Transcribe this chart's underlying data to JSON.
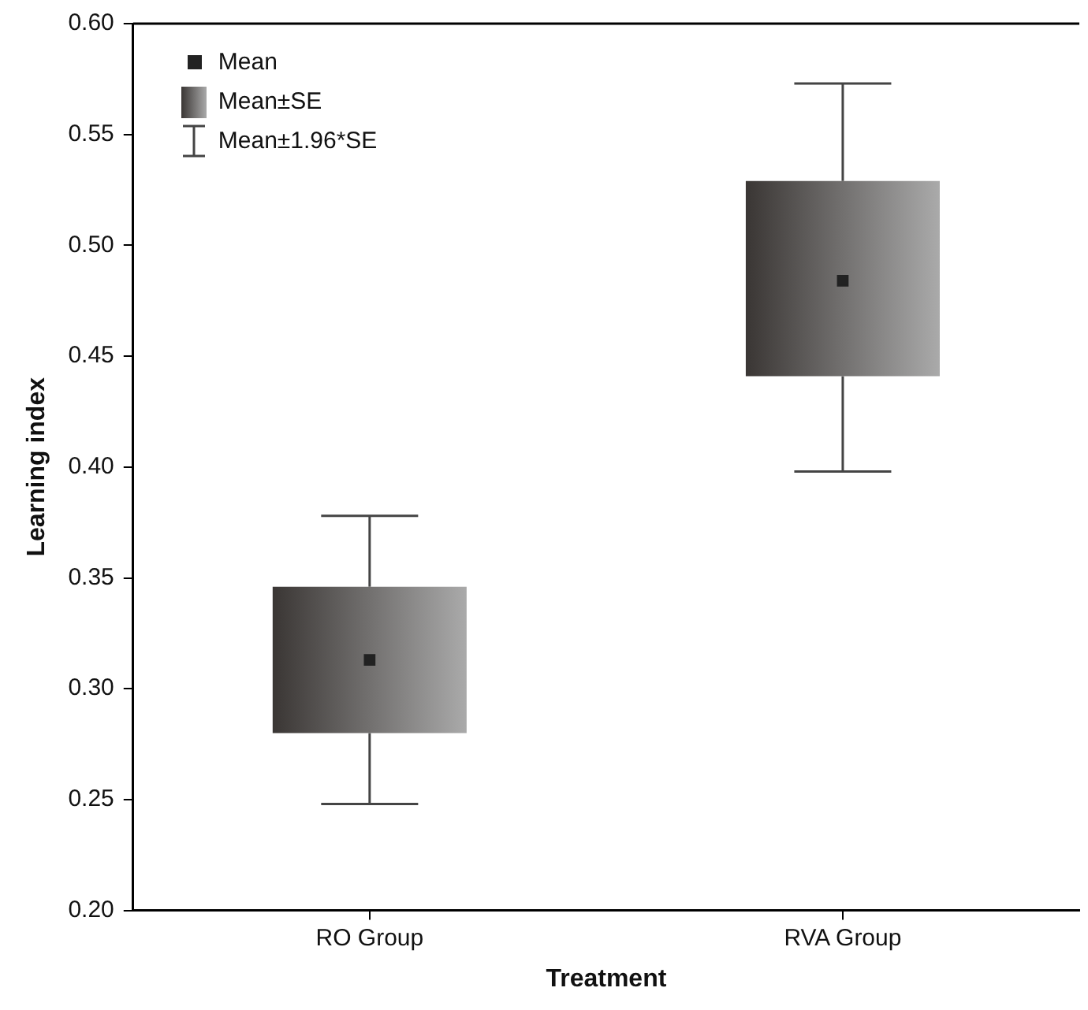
{
  "chart_data": {
    "type": "box",
    "xlabel": "Treatment",
    "ylabel": "Learning index",
    "categories": [
      "RO Group",
      "RVA Group"
    ],
    "color": "#3a3634",
    "boxes": [
      {
        "low": 0.248,
        "q1": 0.28,
        "mean": 0.313,
        "q3": 0.346,
        "high": 0.378
      },
      {
        "low": 0.398,
        "q1": 0.441,
        "mean": 0.484,
        "q3": 0.529,
        "high": 0.573
      }
    ],
    "ylim": [
      0.2,
      0.6
    ],
    "yticks": [
      {
        "value": 0.2,
        "label": "0.20"
      },
      {
        "value": 0.25,
        "label": "0.25"
      },
      {
        "value": 0.3,
        "label": "0.30"
      },
      {
        "value": 0.35,
        "label": "0.35"
      },
      {
        "value": 0.4,
        "label": "0.40"
      },
      {
        "value": 0.45,
        "label": "0.45"
      },
      {
        "value": 0.5,
        "label": "0.50"
      },
      {
        "value": 0.55,
        "label": "0.55"
      },
      {
        "value": 0.6,
        "label": "0.60"
      }
    ],
    "grid": false,
    "annotations": [
      "Mean",
      "Mean±SE",
      "Mean±1.96*SE"
    ]
  }
}
